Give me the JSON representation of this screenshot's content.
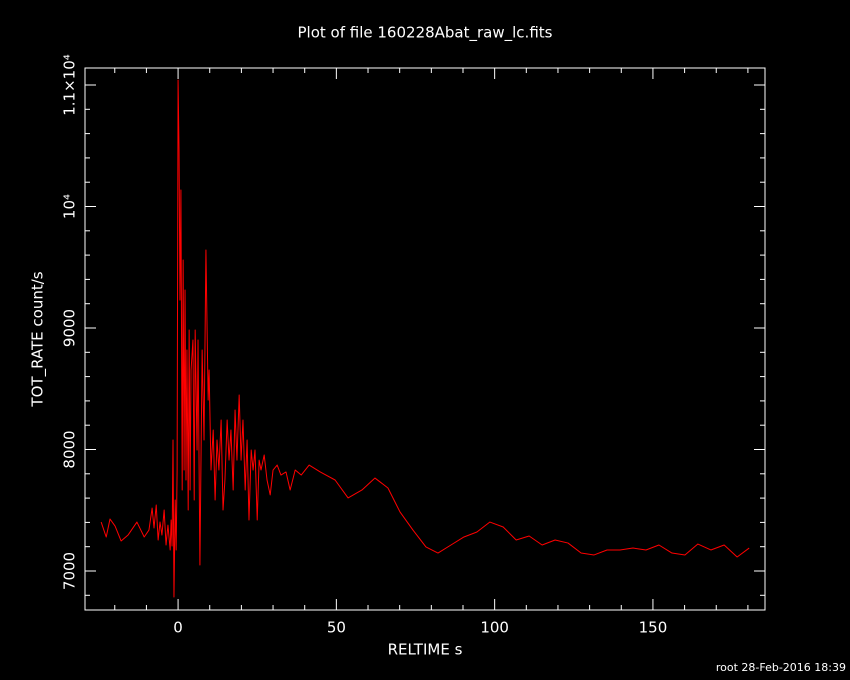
{
  "chart_data": {
    "type": "line",
    "title": "Plot of file 160228Abat_raw_lc.fits",
    "xlabel": "RELTIME  s",
    "ylabel": "TOT_RATE  count/s",
    "footer": "root 28-Feb-2016 18:39",
    "xlim": [
      -29.4,
      185.4
    ],
    "ylim": [
      6679,
      11140
    ],
    "xticks": [
      0,
      50,
      100,
      150
    ],
    "yticks": [
      7000,
      8000,
      9000,
      {
        "value": 10000,
        "label": "10⁴"
      },
      {
        "value": 11000,
        "label": "1.1×10⁴"
      }
    ],
    "xminorticks": [
      -20,
      -10,
      10,
      20,
      30,
      40,
      60,
      70,
      80,
      90,
      110,
      120,
      130,
      140,
      160,
      170,
      180
    ],
    "yminorticks": [
      6800,
      7200,
      7400,
      7600,
      7800,
      8200,
      8400,
      8600,
      8800,
      9200,
      9400,
      9600,
      9800,
      10200,
      10400,
      10600,
      10800
    ],
    "axis_color": "#ffffff",
    "series": [
      {
        "color": "#ff0000",
        "x": [
          -24.3,
          -22.7,
          -21.5,
          -19.9,
          -18,
          -15.8,
          -13,
          -10.7,
          -9.2,
          -8.2,
          -7.6,
          -6.9,
          -6.3,
          -5.7,
          -5.1,
          -4.4,
          -3.8,
          -3.2,
          -2.5,
          -2.2,
          -1.9,
          -1.6,
          -1.3,
          -0.9,
          -0.6,
          -0.3,
          0,
          0.3,
          0.6,
          0.9,
          1.3,
          1.6,
          1.9,
          2.2,
          2.5,
          2.8,
          3.2,
          3.5,
          3.8,
          4.1,
          4.7,
          5.1,
          5.4,
          6,
          6.3,
          6.9,
          7.6,
          8.2,
          8.8,
          9.5,
          9.8,
          10.4,
          11.1,
          11.7,
          12.3,
          12.9,
          13.6,
          14.2,
          14.8,
          15.5,
          16.1,
          16.7,
          17.4,
          18,
          18.6,
          19.3,
          19.9,
          20.5,
          21.2,
          21.8,
          22.4,
          23.1,
          23.7,
          24.3,
          25,
          25.6,
          26.2,
          27.2,
          28.1,
          29.1,
          30,
          31.3,
          32.5,
          34.1,
          35.4,
          37,
          38.9,
          41.4,
          44.9,
          49.6,
          53.7,
          58.1,
          62.2,
          66.3,
          70.1,
          74.2,
          78.3,
          82.1,
          86.2,
          90.3,
          94.4,
          98.5,
          102.7,
          106.8,
          110.9,
          115,
          119.1,
          123.2,
          127.3,
          131.4,
          135.5,
          139.6,
          143.7,
          147.8,
          151.9,
          156,
          160.1,
          164.2,
          168.3,
          172.5,
          176.6,
          180.4
        ],
        "values": [
          7403,
          7280,
          7428,
          7370,
          7247,
          7296,
          7403,
          7280,
          7337,
          7518,
          7354,
          7543,
          7255,
          7403,
          7296,
          7502,
          7214,
          7378,
          7173,
          7420,
          7206,
          8078,
          6786,
          7584,
          7173,
          7831,
          11041,
          10465,
          9230,
          10136,
          7667,
          9560,
          7831,
          9313,
          7749,
          8819,
          7502,
          8984,
          7667,
          8654,
          8901,
          7584,
          8984,
          7996,
          8901,
          7049,
          8819,
          8078,
          9642,
          8407,
          8654,
          7831,
          8160,
          7584,
          8078,
          7831,
          8243,
          7502,
          7749,
          8243,
          7913,
          8160,
          7667,
          8325,
          7913,
          8449,
          7913,
          8243,
          7667,
          8078,
          7420,
          7996,
          7831,
          7996,
          7420,
          7913,
          7831,
          7955,
          7749,
          7626,
          7831,
          7872,
          7790,
          7815,
          7667,
          7831,
          7790,
          7872,
          7815,
          7749,
          7601,
          7667,
          7765,
          7683,
          7486,
          7337,
          7198,
          7148,
          7214,
          7280,
          7321,
          7403,
          7362,
          7255,
          7288,
          7214,
          7255,
          7230,
          7148,
          7132,
          7173,
          7173,
          7189,
          7173,
          7214,
          7148,
          7132,
          7222,
          7173,
          7214,
          7115,
          7189
        ]
      }
    ]
  }
}
